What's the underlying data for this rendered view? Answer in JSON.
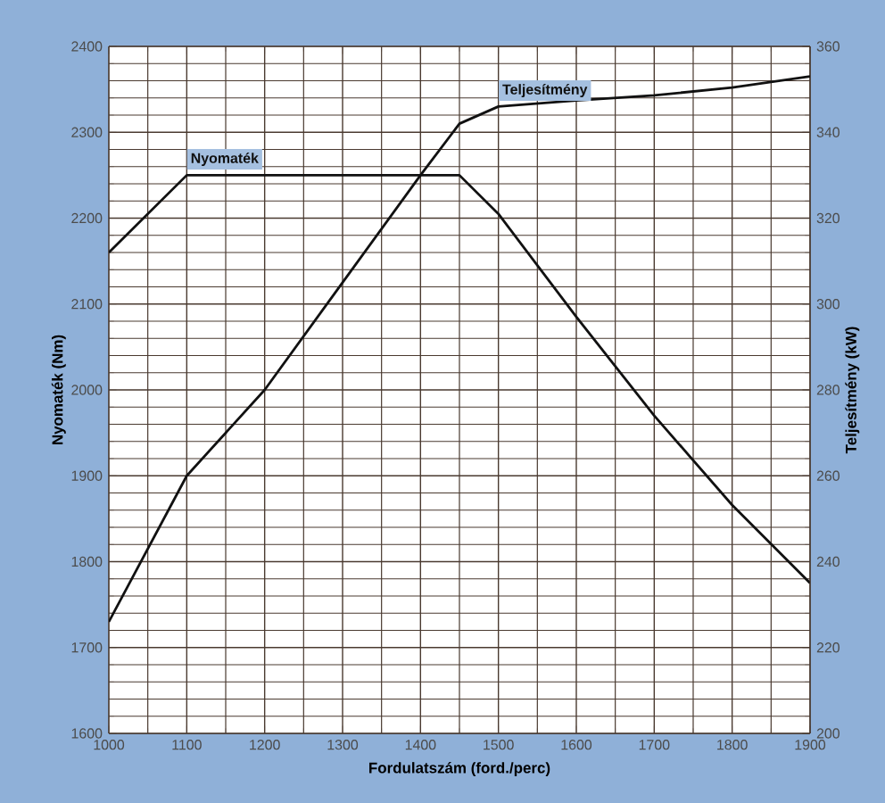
{
  "chart_data": {
    "type": "line",
    "xlabel": "Fordulatszám (ford./perc)",
    "ylabel": "Nyomaték (Nm)",
    "y2label": "Teljesítmény (kW)",
    "x": [
      1000,
      1100,
      1200,
      1300,
      1400,
      1450,
      1500,
      1600,
      1700,
      1800,
      1900
    ],
    "series": [
      {
        "name": "Nyomaték",
        "color": "#111111",
        "values": [
          2160,
          2250,
          2250,
          2250,
          2250,
          2250,
          2205,
          2085,
          1970,
          1866,
          1775
        ]
      },
      {
        "name": "Teljesítmény",
        "color": "#111111",
        "axis": "y2",
        "values": [
          226,
          260,
          280,
          305,
          330,
          342,
          346,
          347.4,
          348.6,
          350.4,
          353
        ]
      }
    ],
    "xlim": [
      1000,
      1900
    ],
    "xticks": [
      1000,
      1100,
      1200,
      1300,
      1400,
      1500,
      1600,
      1700,
      1800,
      1900
    ],
    "ylim": [
      1600,
      2400
    ],
    "yticks": [
      1600,
      1700,
      1800,
      1900,
      2000,
      2100,
      2200,
      2300,
      2400
    ],
    "y2lim": [
      200,
      360
    ],
    "y2ticks": [
      200,
      220,
      240,
      260,
      280,
      300,
      320,
      340,
      360
    ],
    "grid": true,
    "marker": "none",
    "line_style": "solid"
  }
}
